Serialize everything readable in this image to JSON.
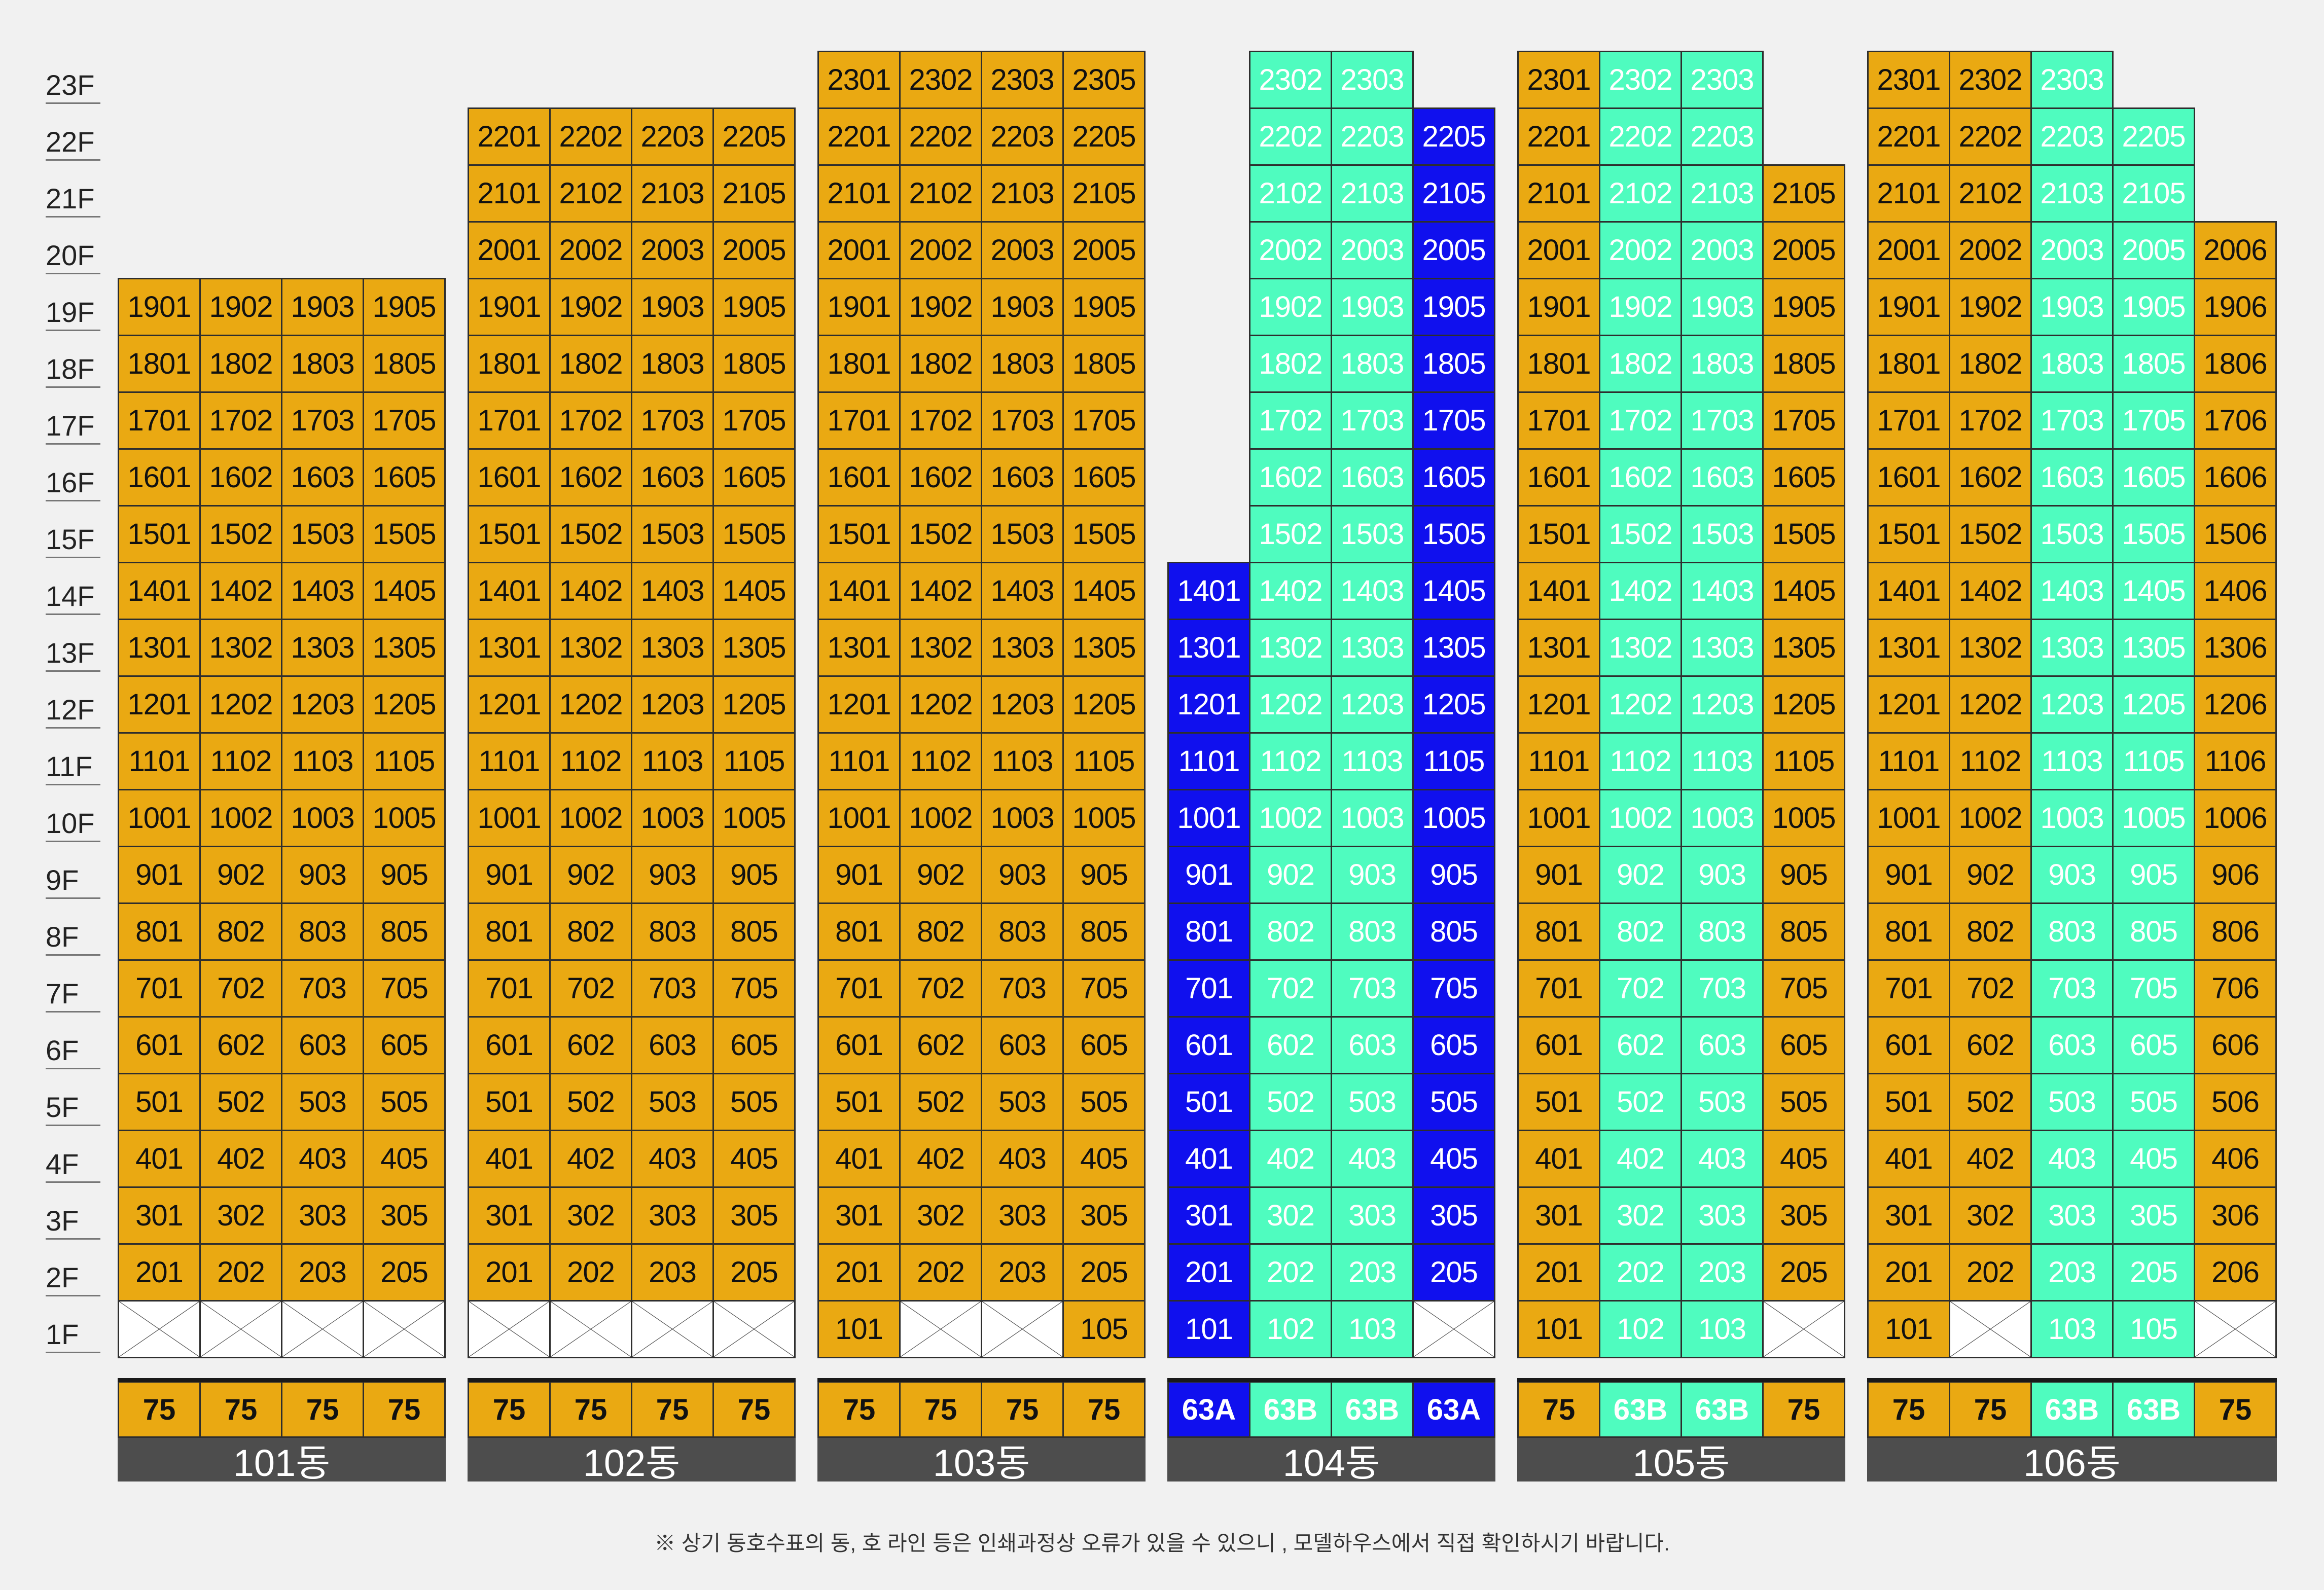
{
  "floors": [
    "1F",
    "2F",
    "3F",
    "4F",
    "5F",
    "6F",
    "7F",
    "8F",
    "9F",
    "10F",
    "11F",
    "12F",
    "13F",
    "14F",
    "15F",
    "16F",
    "17F",
    "18F",
    "19F",
    "20F",
    "21F",
    "22F",
    "23F"
  ],
  "colors": {
    "standard_75": "#eaa912",
    "type_63B": "#4ffcbf",
    "type_63A": "#1010ee",
    "not_available": "#ffffff"
  },
  "buildings": [
    {
      "name": "101동",
      "types": [
        "75",
        "75",
        "75",
        "75"
      ],
      "columns": [
        {
          "line": "01",
          "fill": "o",
          "min": 2,
          "max": 19,
          "first_floor": "x"
        },
        {
          "line": "02",
          "fill": "o",
          "min": 2,
          "max": 19,
          "first_floor": "x"
        },
        {
          "line": "03",
          "fill": "o",
          "min": 2,
          "max": 19,
          "first_floor": "x"
        },
        {
          "line": "05",
          "fill": "o",
          "min": 2,
          "max": 19,
          "first_floor": "x"
        }
      ]
    },
    {
      "name": "102동",
      "types": [
        "75",
        "75",
        "75",
        "75"
      ],
      "columns": [
        {
          "line": "01",
          "fill": "o",
          "min": 2,
          "max": 22,
          "first_floor": "x"
        },
        {
          "line": "02",
          "fill": "o",
          "min": 2,
          "max": 22,
          "first_floor": "x"
        },
        {
          "line": "03",
          "fill": "o",
          "min": 2,
          "max": 22,
          "first_floor": "x"
        },
        {
          "line": "05",
          "fill": "o",
          "min": 2,
          "max": 22,
          "first_floor": "x"
        }
      ]
    },
    {
      "name": "103동",
      "types": [
        "75",
        "75",
        "75",
        "75"
      ],
      "columns": [
        {
          "line": "01",
          "fill": "o",
          "min": 1,
          "max": 23
        },
        {
          "line": "02",
          "fill": "o",
          "min": 2,
          "max": 23,
          "first_floor": "x"
        },
        {
          "line": "03",
          "fill": "o",
          "min": 2,
          "max": 23,
          "first_floor": "x"
        },
        {
          "line": "05",
          "fill": "o",
          "min": 1,
          "max": 23
        }
      ]
    },
    {
      "name": "104동",
      "types": [
        "63A",
        "63B",
        "63B",
        "63A"
      ],
      "columns": [
        {
          "line": "01",
          "fill": "b",
          "min": 1,
          "max": 14
        },
        {
          "line": "02",
          "fill": "m",
          "min": 1,
          "max": 23
        },
        {
          "line": "03",
          "fill": "m",
          "min": 1,
          "max": 23
        },
        {
          "line": "05",
          "fill": "b",
          "min": 2,
          "max": 22,
          "first_floor": "x"
        }
      ]
    },
    {
      "name": "105동",
      "types": [
        "75",
        "63B",
        "63B",
        "75"
      ],
      "columns": [
        {
          "line": "01",
          "fill": "o",
          "min": 1,
          "max": 23
        },
        {
          "line": "02",
          "fill": "m",
          "min": 1,
          "max": 23
        },
        {
          "line": "03",
          "fill": "m",
          "min": 1,
          "max": 23
        },
        {
          "line": "05",
          "fill": "o",
          "min": 2,
          "max": 21,
          "first_floor": "x"
        }
      ]
    },
    {
      "name": "106동",
      "types": [
        "75",
        "75",
        "63B",
        "63B",
        "75"
      ],
      "columns": [
        {
          "line": "01",
          "fill": "o",
          "min": 1,
          "max": 23
        },
        {
          "line": "02",
          "fill": "o",
          "min": 2,
          "max": 23,
          "first_floor": "x"
        },
        {
          "line": "03",
          "fill": "m",
          "min": 1,
          "max": 23
        },
        {
          "line": "05",
          "fill": "m",
          "min": 1,
          "max": 22
        },
        {
          "line": "06",
          "fill": "o",
          "min": 2,
          "max": 20,
          "first_floor": "x"
        }
      ]
    }
  ],
  "overrides": {
    "104동": {
      "0": {
        "1": "o-blue"
      }
    },
    "105동": {},
    "106동": {}
  },
  "footnote": "※ 상기 동호수표의 동, 호 라인 등은 인쇄과정상 오류가 있을 수 있으니 , 모델하우스에서 직접 확인하시기 바랍니다."
}
